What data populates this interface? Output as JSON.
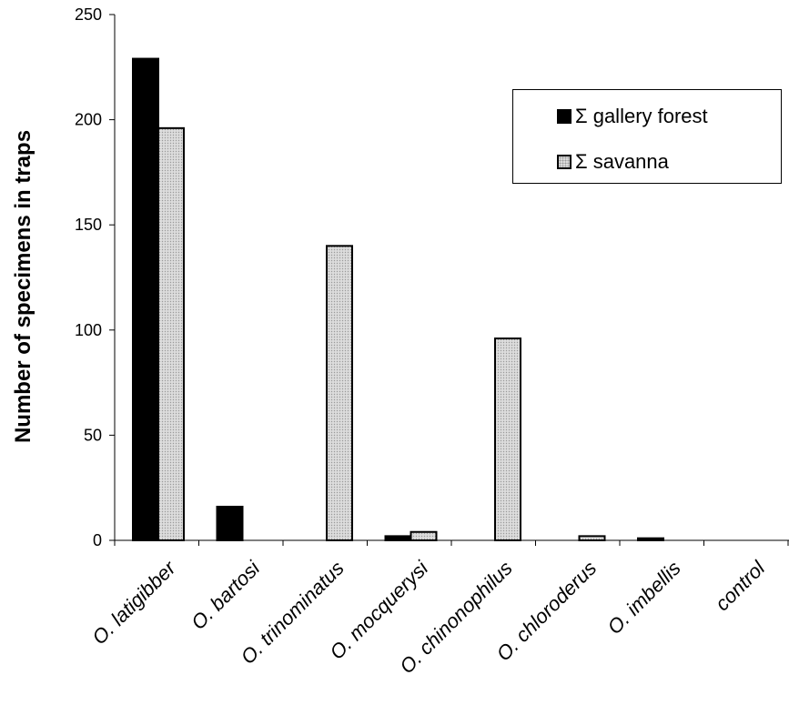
{
  "chart_data": {
    "type": "bar",
    "title": "",
    "xlabel": "",
    "ylabel": "Number of specimens in traps",
    "ylim": [
      0,
      250
    ],
    "yticks": [
      0,
      50,
      100,
      150,
      200,
      250
    ],
    "categories": [
      "O. latigibber",
      "O. bartosi",
      "O. trinominatus",
      "O. mocquerysi",
      "O. chinonophilus",
      "O. chloroderus",
      "O. imbellis",
      "control"
    ],
    "series": [
      {
        "name": "Σ gallery forest",
        "color": "#000000",
        "values": [
          229,
          16,
          0,
          2,
          0,
          0,
          1,
          0
        ]
      },
      {
        "name": "Σ savanna",
        "color": "#dcdcdc",
        "values": [
          196,
          0,
          140,
          4,
          96,
          2,
          0,
          0
        ]
      }
    ],
    "grid": false,
    "legend_position": "top-right"
  }
}
